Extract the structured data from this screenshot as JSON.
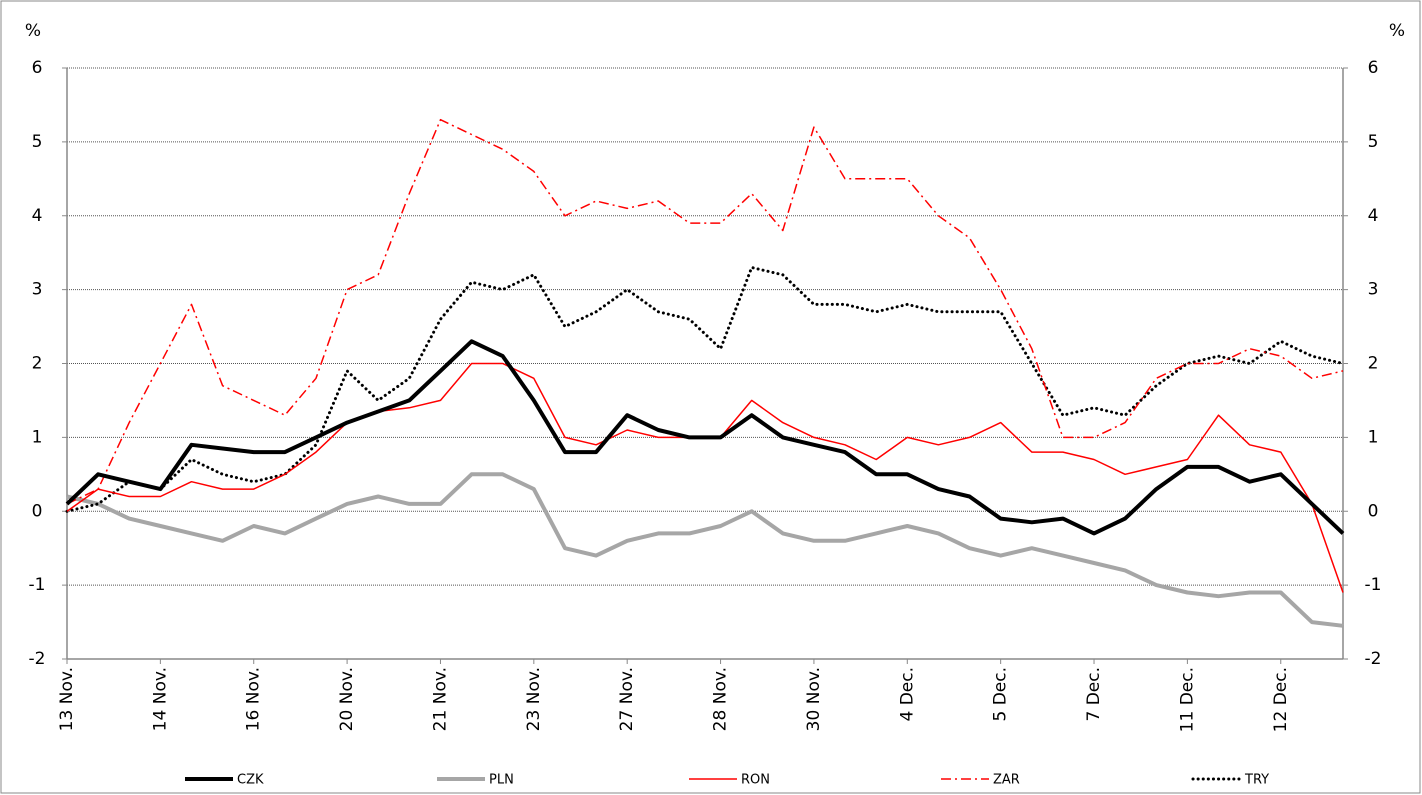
{
  "chart_data": {
    "type": "line",
    "y_label": "%",
    "y2_label": "%",
    "categories": [
      "13 Nov.",
      null,
      null,
      "14 Nov.",
      null,
      null,
      "16 Nov.",
      null,
      null,
      "20 Nov.",
      null,
      null,
      "21 Nov.",
      null,
      null,
      "23 Nov.",
      null,
      null,
      "27 Nov.",
      null,
      null,
      "28 Nov.",
      null,
      null,
      "30 Nov.",
      null,
      null,
      "4 Dec.",
      null,
      null,
      "5 Dec.",
      null,
      null,
      "7 Dec.",
      null,
      null,
      "11 Dec.",
      null,
      null,
      "12 Dec.",
      null,
      null
    ],
    "series": [
      {
        "name": "CZK",
        "color": "#000000",
        "style": "solid",
        "width": 4,
        "values": [
          0.1,
          0.5,
          0.4,
          0.3,
          0.9,
          0.85,
          0.8,
          0.8,
          1.0,
          1.2,
          1.35,
          1.5,
          1.9,
          2.3,
          2.1,
          1.5,
          0.8,
          0.8,
          1.3,
          1.1,
          1.0,
          1.0,
          1.3,
          1.0,
          0.9,
          0.8,
          0.5,
          0.5,
          0.3,
          0.2,
          -0.1,
          -0.15,
          -0.1,
          -0.3,
          -0.1,
          0.3,
          0.6,
          0.6,
          0.4,
          0.5,
          0.1,
          -0.3
        ]
      },
      {
        "name": "PLN",
        "color": "#a6a6a6",
        "style": "solid",
        "width": 4,
        "values": [
          0.2,
          0.1,
          -0.1,
          -0.2,
          -0.3,
          -0.4,
          -0.2,
          -0.3,
          -0.1,
          0.1,
          0.2,
          0.1,
          0.1,
          0.5,
          0.5,
          0.3,
          -0.5,
          -0.6,
          -0.4,
          -0.3,
          -0.3,
          -0.2,
          0.0,
          -0.3,
          -0.4,
          -0.4,
          -0.3,
          -0.2,
          -0.3,
          -0.5,
          -0.6,
          -0.5,
          -0.6,
          -0.7,
          -0.8,
          -1.0,
          -1.1,
          -1.15,
          -1.1,
          -1.1,
          -1.5,
          -1.55
        ]
      },
      {
        "name": "RON",
        "color": "#ff0000",
        "style": "solid",
        "width": 1.5,
        "values": [
          0.0,
          0.3,
          0.2,
          0.2,
          0.4,
          0.3,
          0.3,
          0.5,
          0.8,
          1.2,
          1.35,
          1.4,
          1.5,
          2.0,
          2.0,
          1.8,
          1.0,
          0.9,
          1.1,
          1.0,
          1.0,
          1.0,
          1.5,
          1.2,
          1.0,
          0.9,
          0.7,
          1.0,
          0.9,
          1.0,
          1.2,
          0.8,
          0.8,
          0.7,
          0.5,
          0.6,
          0.7,
          1.3,
          0.9,
          0.8,
          0.1,
          -1.1
        ]
      },
      {
        "name": "ZAR",
        "color": "#ff0000",
        "style": "dashdot",
        "width": 1.5,
        "values": [
          0.1,
          0.3,
          1.2,
          2.0,
          2.8,
          1.7,
          1.5,
          1.3,
          1.8,
          3.0,
          3.2,
          4.3,
          5.3,
          5.1,
          4.9,
          4.6,
          4.0,
          4.2,
          4.1,
          4.2,
          3.9,
          3.9,
          4.3,
          3.8,
          5.2,
          4.5,
          4.5,
          4.5,
          4.0,
          3.7,
          3.0,
          2.2,
          1.0,
          1.0,
          1.2,
          1.8,
          2.0,
          2.0,
          2.2,
          2.1,
          1.8,
          1.9
        ]
      },
      {
        "name": "TRY",
        "color": "#000000",
        "style": "dotted",
        "width": 3,
        "values": [
          0.0,
          0.1,
          0.4,
          0.3,
          0.7,
          0.5,
          0.4,
          0.5,
          0.9,
          1.9,
          1.5,
          1.8,
          2.6,
          3.1,
          3.0,
          3.2,
          2.5,
          2.7,
          3.0,
          2.7,
          2.6,
          2.2,
          3.3,
          3.2,
          2.8,
          2.8,
          2.7,
          2.8,
          2.7,
          2.7,
          2.7,
          2.0,
          1.3,
          1.4,
          1.3,
          1.7,
          2.0,
          2.1,
          2.0,
          2.3,
          2.1,
          2.0
        ]
      }
    ],
    "ylim": [
      -2,
      6
    ],
    "yticks": [
      -2,
      -1,
      0,
      1,
      2,
      3,
      4,
      5,
      6
    ],
    "y2lim": [
      -2,
      6
    ],
    "y2ticks": [
      -2,
      -1,
      0,
      1,
      2,
      3,
      4,
      5,
      6
    ],
    "grid": true,
    "legend": "bottom"
  }
}
